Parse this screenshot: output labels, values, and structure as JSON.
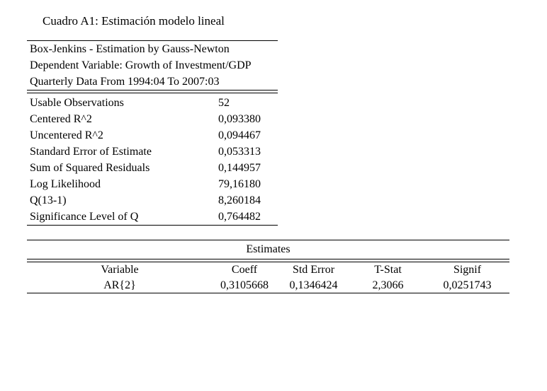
{
  "page": {
    "background": "#ffffff",
    "text_color": "#000000"
  },
  "caption": "Cuadro A1: Estimación modelo lineal",
  "stats_table": {
    "header_lines": [
      "Box-Jenkins - Estimation by Gauss-Newton",
      "Dependent Variable: Growth of Investment/GDP",
      "Quarterly Data From 1994:04 To 2007:03"
    ],
    "rows": [
      {
        "label": "Usable Observations",
        "value": "52"
      },
      {
        "label": "Centered R^2",
        "value": "0,093380"
      },
      {
        "label": "Uncentered R^2",
        "value": "0,094467"
      },
      {
        "label": "Standard Error of Estimate",
        "value": "0,053313"
      },
      {
        "label": "Sum of Squared Residuals",
        "value": "0,144957"
      },
      {
        "label": "Log Likelihood",
        "value": "79,16180"
      },
      {
        "label": "Q(13-1)",
        "value": "8,260184"
      },
      {
        "label": "Significance Level of Q",
        "value": "0,764482"
      }
    ]
  },
  "estimates_table": {
    "title": "Estimates",
    "columns": [
      "Variable",
      "Coeff",
      "Std Error",
      "T-Stat",
      "Signif"
    ],
    "rows": [
      {
        "variable": "AR{2}",
        "coeff": "0,3105668",
        "std_error": "0,1346424",
        "t_stat": "2,3066",
        "signif": "0,0251743"
      }
    ]
  }
}
